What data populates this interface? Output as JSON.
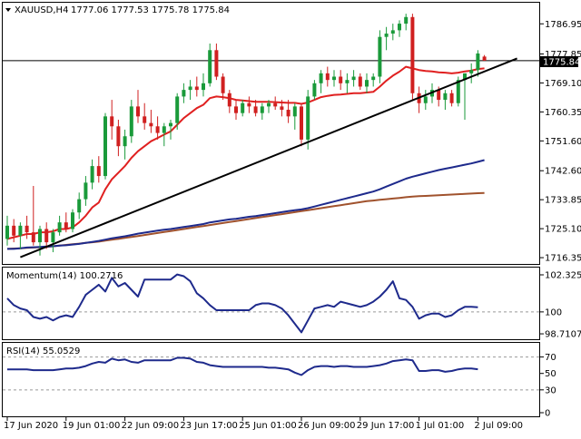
{
  "header": {
    "symbol": "XAUUSD,H4",
    "ohlc": "1777.06 1777.53 1775.78 1775.84"
  },
  "price_badge": "1775.84",
  "momentum_label": "Momentum(14) 100.2716",
  "rsi_label": "RSI(14) 55.0529",
  "colors": {
    "bull": "#1a9a3a",
    "bear": "#d02020",
    "ema_red": "#e02020",
    "ema_blue": "#1e2a8c",
    "ema_brown": "#a0522d",
    "indicator": "#1e2a8c",
    "trendline": "#000000"
  },
  "chart_data": [
    {
      "type": "candlestick",
      "title": "XAUUSD,H4",
      "y_ticks": [
        1786.95,
        1777.85,
        1769.1,
        1760.35,
        1751.6,
        1742.6,
        1733.85,
        1725.1,
        1716.35
      ],
      "y_tick_labels": [
        "1786.95",
        "1777.85",
        "1769.10",
        "1760.35",
        "1751.60",
        "1742.60",
        "1733.85",
        "1725.10",
        "1716.35"
      ],
      "ylim": [
        1715.0,
        1792.5
      ],
      "x_tick_labels": [
        "17 Jun 2020",
        "19 Jun 01:00",
        "22 Jun 09:00",
        "23 Jun 17:00",
        "25 Jun 01:00",
        "26 Jun 09:00",
        "29 Jun 17:00",
        "1 Jul 01:00",
        "2 Jul 09:00"
      ],
      "x_tick_index": [
        0,
        9,
        18,
        27,
        36,
        45,
        54,
        63,
        72
      ],
      "current_price": 1775.84,
      "candles": [
        {
          "o": 1722,
          "h": 1729,
          "l": 1720,
          "c": 1726
        },
        {
          "o": 1726,
          "h": 1728,
          "l": 1721,
          "c": 1723
        },
        {
          "o": 1723,
          "h": 1727,
          "l": 1719,
          "c": 1726
        },
        {
          "o": 1726,
          "h": 1729,
          "l": 1722,
          "c": 1724
        },
        {
          "o": 1724,
          "h": 1738,
          "l": 1720,
          "c": 1721
        },
        {
          "o": 1721,
          "h": 1726,
          "l": 1717,
          "c": 1725
        },
        {
          "o": 1725,
          "h": 1727,
          "l": 1719,
          "c": 1721
        },
        {
          "o": 1721,
          "h": 1725,
          "l": 1718,
          "c": 1724
        },
        {
          "o": 1724,
          "h": 1729,
          "l": 1723,
          "c": 1727
        },
        {
          "o": 1727,
          "h": 1730,
          "l": 1724,
          "c": 1725
        },
        {
          "o": 1725,
          "h": 1731,
          "l": 1724,
          "c": 1730
        },
        {
          "o": 1730,
          "h": 1736,
          "l": 1728,
          "c": 1734
        },
        {
          "o": 1734,
          "h": 1741,
          "l": 1732,
          "c": 1739
        },
        {
          "o": 1739,
          "h": 1746,
          "l": 1737,
          "c": 1744
        },
        {
          "o": 1744,
          "h": 1747,
          "l": 1739,
          "c": 1741
        },
        {
          "o": 1741,
          "h": 1760,
          "l": 1740,
          "c": 1759
        },
        {
          "o": 1759,
          "h": 1764,
          "l": 1752,
          "c": 1756
        },
        {
          "o": 1756,
          "h": 1758,
          "l": 1747,
          "c": 1750
        },
        {
          "o": 1750,
          "h": 1755,
          "l": 1746,
          "c": 1753
        },
        {
          "o": 1753,
          "h": 1764,
          "l": 1751,
          "c": 1762
        },
        {
          "o": 1762,
          "h": 1767,
          "l": 1757,
          "c": 1759
        },
        {
          "o": 1759,
          "h": 1763,
          "l": 1755,
          "c": 1757
        },
        {
          "o": 1757,
          "h": 1761,
          "l": 1754,
          "c": 1756
        },
        {
          "o": 1756,
          "h": 1759,
          "l": 1752,
          "c": 1754
        },
        {
          "o": 1754,
          "h": 1757,
          "l": 1750,
          "c": 1756
        },
        {
          "o": 1756,
          "h": 1758,
          "l": 1752,
          "c": 1757
        },
        {
          "o": 1757,
          "h": 1766,
          "l": 1755,
          "c": 1765
        },
        {
          "o": 1765,
          "h": 1769,
          "l": 1763,
          "c": 1767
        },
        {
          "o": 1767,
          "h": 1770,
          "l": 1764,
          "c": 1768
        },
        {
          "o": 1768,
          "h": 1771,
          "l": 1765,
          "c": 1767
        },
        {
          "o": 1767,
          "h": 1772,
          "l": 1765,
          "c": 1769
        },
        {
          "o": 1769,
          "h": 1781,
          "l": 1768,
          "c": 1779
        },
        {
          "o": 1779,
          "h": 1781,
          "l": 1770,
          "c": 1771
        },
        {
          "o": 1771,
          "h": 1772,
          "l": 1764,
          "c": 1766
        },
        {
          "o": 1766,
          "h": 1767,
          "l": 1760,
          "c": 1762
        },
        {
          "o": 1762,
          "h": 1764,
          "l": 1758,
          "c": 1760
        },
        {
          "o": 1760,
          "h": 1764,
          "l": 1759,
          "c": 1763
        },
        {
          "o": 1763,
          "h": 1765,
          "l": 1760,
          "c": 1762
        },
        {
          "o": 1762,
          "h": 1764,
          "l": 1759,
          "c": 1760
        },
        {
          "o": 1760,
          "h": 1763,
          "l": 1758,
          "c": 1762
        },
        {
          "o": 1762,
          "h": 1764,
          "l": 1760,
          "c": 1763
        },
        {
          "o": 1763,
          "h": 1765,
          "l": 1761,
          "c": 1762
        },
        {
          "o": 1762,
          "h": 1764,
          "l": 1759,
          "c": 1761
        },
        {
          "o": 1761,
          "h": 1764,
          "l": 1757,
          "c": 1759
        },
        {
          "o": 1759,
          "h": 1763,
          "l": 1755,
          "c": 1762
        },
        {
          "o": 1762,
          "h": 1763,
          "l": 1750,
          "c": 1752
        },
        {
          "o": 1752,
          "h": 1767,
          "l": 1749,
          "c": 1765
        },
        {
          "o": 1765,
          "h": 1770,
          "l": 1764,
          "c": 1769
        },
        {
          "o": 1769,
          "h": 1773,
          "l": 1766,
          "c": 1772
        },
        {
          "o": 1772,
          "h": 1774,
          "l": 1768,
          "c": 1770
        },
        {
          "o": 1770,
          "h": 1773,
          "l": 1768,
          "c": 1771
        },
        {
          "o": 1771,
          "h": 1773,
          "l": 1767,
          "c": 1769
        },
        {
          "o": 1769,
          "h": 1772,
          "l": 1766,
          "c": 1770
        },
        {
          "o": 1770,
          "h": 1773,
          "l": 1768,
          "c": 1771
        },
        {
          "o": 1771,
          "h": 1772,
          "l": 1767,
          "c": 1768
        },
        {
          "o": 1768,
          "h": 1772,
          "l": 1766,
          "c": 1770
        },
        {
          "o": 1770,
          "h": 1772,
          "l": 1768,
          "c": 1771
        },
        {
          "o": 1771,
          "h": 1785,
          "l": 1769,
          "c": 1783
        },
        {
          "o": 1783,
          "h": 1786,
          "l": 1779,
          "c": 1784
        },
        {
          "o": 1784,
          "h": 1787,
          "l": 1782,
          "c": 1785
        },
        {
          "o": 1785,
          "h": 1788,
          "l": 1783,
          "c": 1787
        },
        {
          "o": 1787,
          "h": 1790,
          "l": 1785,
          "c": 1789
        },
        {
          "o": 1789,
          "h": 1790,
          "l": 1764,
          "c": 1766
        },
        {
          "o": 1766,
          "h": 1768,
          "l": 1760,
          "c": 1763
        },
        {
          "o": 1763,
          "h": 1767,
          "l": 1761,
          "c": 1765
        },
        {
          "o": 1765,
          "h": 1769,
          "l": 1763,
          "c": 1767
        },
        {
          "o": 1767,
          "h": 1768,
          "l": 1762,
          "c": 1764
        },
        {
          "o": 1764,
          "h": 1767,
          "l": 1761,
          "c": 1766
        },
        {
          "o": 1766,
          "h": 1767,
          "l": 1762,
          "c": 1763
        },
        {
          "o": 1763,
          "h": 1771,
          "l": 1762,
          "c": 1770
        },
        {
          "o": 1770,
          "h": 1772,
          "l": 1758,
          "c": 1772
        },
        {
          "o": 1772,
          "h": 1775,
          "l": 1769,
          "c": 1773
        },
        {
          "o": 1773,
          "h": 1779,
          "l": 1771,
          "c": 1778
        },
        {
          "o": 1777.06,
          "h": 1777.53,
          "l": 1775.78,
          "c": 1775.84
        }
      ],
      "ema_red": [
        1722,
        1722.5,
        1723,
        1723.5,
        1723.5,
        1724,
        1724,
        1724.3,
        1725,
        1725,
        1725.5,
        1727,
        1729,
        1731.5,
        1733,
        1737,
        1740,
        1742,
        1744,
        1746.5,
        1748.5,
        1750,
        1751.5,
        1752.5,
        1753.5,
        1754.5,
        1756.5,
        1758.5,
        1760,
        1761.5,
        1762.5,
        1764.5,
        1765,
        1764.8,
        1764.5,
        1764,
        1763.8,
        1763.6,
        1763.4,
        1763.4,
        1763.4,
        1763.3,
        1763.2,
        1763.1,
        1763.1,
        1762.8,
        1763.2,
        1764,
        1764.8,
        1765.2,
        1765.5,
        1765.6,
        1765.8,
        1766,
        1766,
        1766.2,
        1766.4,
        1768,
        1769.8,
        1771.3,
        1772.5,
        1774,
        1773.5,
        1773,
        1772.7,
        1772.6,
        1772.3,
        1772.2,
        1772,
        1772.2,
        1772.6,
        1772.8,
        1773.3,
        1773.5
      ],
      "ema_blue": [
        1719,
        1719,
        1719.2,
        1719.4,
        1719.5,
        1719.6,
        1719.7,
        1719.8,
        1720,
        1720.1,
        1720.3,
        1720.5,
        1720.8,
        1721.1,
        1721.4,
        1721.8,
        1722.2,
        1722.5,
        1722.8,
        1723.2,
        1723.6,
        1723.9,
        1724.2,
        1724.5,
        1724.8,
        1725,
        1725.3,
        1725.6,
        1725.9,
        1726.2,
        1726.5,
        1727,
        1727.3,
        1727.6,
        1727.9,
        1728.1,
        1728.4,
        1728.7,
        1728.9,
        1729.2,
        1729.5,
        1729.8,
        1730.1,
        1730.4,
        1730.7,
        1730.9,
        1731.3,
        1731.8,
        1732.3,
        1732.8,
        1733.3,
        1733.8,
        1734.3,
        1734.8,
        1735.3,
        1735.8,
        1736.3,
        1737,
        1737.8,
        1738.6,
        1739.4,
        1740.2,
        1740.8,
        1741.3,
        1741.8,
        1742.3,
        1742.8,
        1743.2,
        1743.6,
        1744,
        1744.4,
        1744.8,
        1745.3,
        1745.8
      ],
      "ema_brown": [
        1719,
        1719.1,
        1719.2,
        1719.3,
        1719.4,
        1719.5,
        1719.6,
        1719.8,
        1720,
        1720.2,
        1720.4,
        1720.6,
        1720.8,
        1721,
        1721.2,
        1721.5,
        1721.8,
        1722,
        1722.3,
        1722.6,
        1722.9,
        1723.2,
        1723.5,
        1723.8,
        1724.1,
        1724.4,
        1724.7,
        1725,
        1725.3,
        1725.6,
        1725.9,
        1726.2,
        1726.5,
        1726.8,
        1727.1,
        1727.4,
        1727.7,
        1728,
        1728.3,
        1728.6,
        1728.9,
        1729.2,
        1729.5,
        1729.8,
        1730.1,
        1730.4,
        1730.7,
        1731,
        1731.3,
        1731.6,
        1731.9,
        1732.2,
        1732.5,
        1732.8,
        1733.1,
        1733.4,
        1733.6,
        1733.8,
        1734,
        1734.2,
        1734.4,
        1734.6,
        1734.8,
        1734.9,
        1735,
        1735.1,
        1735.2,
        1735.3,
        1735.4,
        1735.5,
        1735.6,
        1735.7,
        1735.8,
        1735.9
      ],
      "trendline": {
        "from": {
          "index": 2,
          "value": 1716.5
        },
        "to": {
          "index": 78,
          "value": 1776.5
        }
      }
    },
    {
      "type": "line",
      "title": "Momentum(14) 100.2716",
      "y_tick_labels": [
        "102.3253",
        "100",
        "98.7107"
      ],
      "y_ticks": [
        102.3253,
        100,
        98.7107
      ],
      "ylim": [
        98.5,
        102.5
      ],
      "reference_line": 100,
      "values": [
        100.8,
        100.4,
        100.2,
        100.1,
        99.7,
        99.6,
        99.7,
        99.5,
        99.7,
        99.8,
        99.7,
        100.3,
        101.0,
        101.3,
        101.6,
        101.2,
        102.0,
        101.5,
        101.7,
        101.3,
        100.9,
        101.9,
        101.9,
        101.9,
        101.9,
        101.9,
        102.2,
        102.1,
        101.8,
        101.1,
        100.8,
        100.4,
        100.1,
        100.1,
        100.1,
        100.1,
        100.1,
        100.1,
        100.4,
        100.5,
        100.5,
        100.4,
        100.2,
        99.8,
        99.3,
        98.8,
        99.5,
        100.2,
        100.3,
        100.4,
        100.3,
        100.6,
        100.5,
        100.4,
        100.3,
        100.4,
        100.6,
        100.9,
        101.3,
        101.8,
        100.8,
        100.7,
        100.3,
        99.6,
        99.8,
        99.9,
        99.9,
        99.7,
        99.8,
        100.1,
        100.3,
        100.3,
        100.27
      ]
    },
    {
      "type": "line",
      "title": "RSI(14) 55.0529",
      "y_tick_labels": [
        "70",
        "50",
        "30",
        "0"
      ],
      "y_ticks": [
        70,
        50,
        30,
        0
      ],
      "ylim": [
        0,
        85
      ],
      "reference_lines": [
        70,
        30
      ],
      "values": [
        55,
        55,
        55,
        55,
        54,
        54,
        54,
        54,
        55,
        56,
        56,
        57,
        59,
        62,
        64,
        63,
        68,
        66,
        67,
        64,
        63,
        66,
        66,
        66,
        66,
        66,
        69,
        69,
        68,
        64,
        63,
        60,
        59,
        58,
        58,
        58,
        58,
        58,
        58,
        58,
        57,
        57,
        56,
        55,
        51,
        48,
        54,
        58,
        59,
        59,
        58,
        59,
        59,
        58,
        58,
        58,
        59,
        60,
        62,
        65,
        66,
        67,
        66,
        53,
        53,
        54,
        54,
        52,
        53,
        55,
        56,
        56,
        55.05
      ]
    }
  ]
}
